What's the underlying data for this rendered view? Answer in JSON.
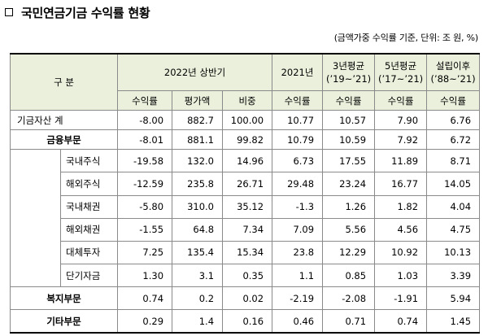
{
  "title": "국민연금기금 수익률 현황",
  "note": "(금액가중 수익률 기준, 단위: 조 원, %)",
  "header": {
    "category": "구 분",
    "period_2022h1": "2022년 상반기",
    "year_2021": "2021년",
    "avg3_line1": "3년평균",
    "avg3_line2": "(’19~’21)",
    "avg5_line1": "5년평균",
    "avg5_line2": "(’17~’21)",
    "since_line1": "설립이후",
    "since_line2": "(’88~’21)",
    "return": "수익률",
    "valuation": "평가액",
    "weight": "비중"
  },
  "rows": [
    {
      "label": "기금자산 계",
      "values": [
        "-8.00",
        "882.7",
        "100.00",
        "10.77",
        "10.57",
        "7.90",
        "6.76"
      ]
    },
    {
      "label": "금융부문",
      "values": [
        "-8.01",
        "881.1",
        "99.82",
        "10.79",
        "10.59",
        "7.92",
        "6.72"
      ]
    },
    {
      "label": "국내주식",
      "values": [
        "-19.58",
        "132.0",
        "14.96",
        "6.73",
        "17.55",
        "11.89",
        "8.71"
      ]
    },
    {
      "label": "해외주식",
      "values": [
        "-12.59",
        "235.8",
        "26.71",
        "29.48",
        "23.24",
        "16.77",
        "14.05"
      ]
    },
    {
      "label": "국내채권",
      "values": [
        "-5.80",
        "310.0",
        "35.12",
        "-1.3",
        "1.26",
        "1.82",
        "4.04"
      ]
    },
    {
      "label": "해외채권",
      "values": [
        "-1.55",
        "64.8",
        "7.34",
        "7.09",
        "5.56",
        "4.56",
        "4.75"
      ]
    },
    {
      "label": "대체투자",
      "values": [
        "7.25",
        "135.4",
        "15.34",
        "23.8",
        "12.29",
        "10.92",
        "10.13"
      ]
    },
    {
      "label": "단기자금",
      "values": [
        "1.30",
        "3.1",
        "0.35",
        "1.1",
        "0.85",
        "1.03",
        "3.39"
      ]
    },
    {
      "label": "복지부문",
      "values": [
        "0.74",
        "0.2",
        "0.02",
        "-2.19",
        "-2.08",
        "-1.91",
        "5.94"
      ]
    },
    {
      "label": "기타부문",
      "values": [
        "0.29",
        "1.4",
        "0.16",
        "0.46",
        "0.71",
        "0.74",
        "1.45"
      ]
    }
  ]
}
